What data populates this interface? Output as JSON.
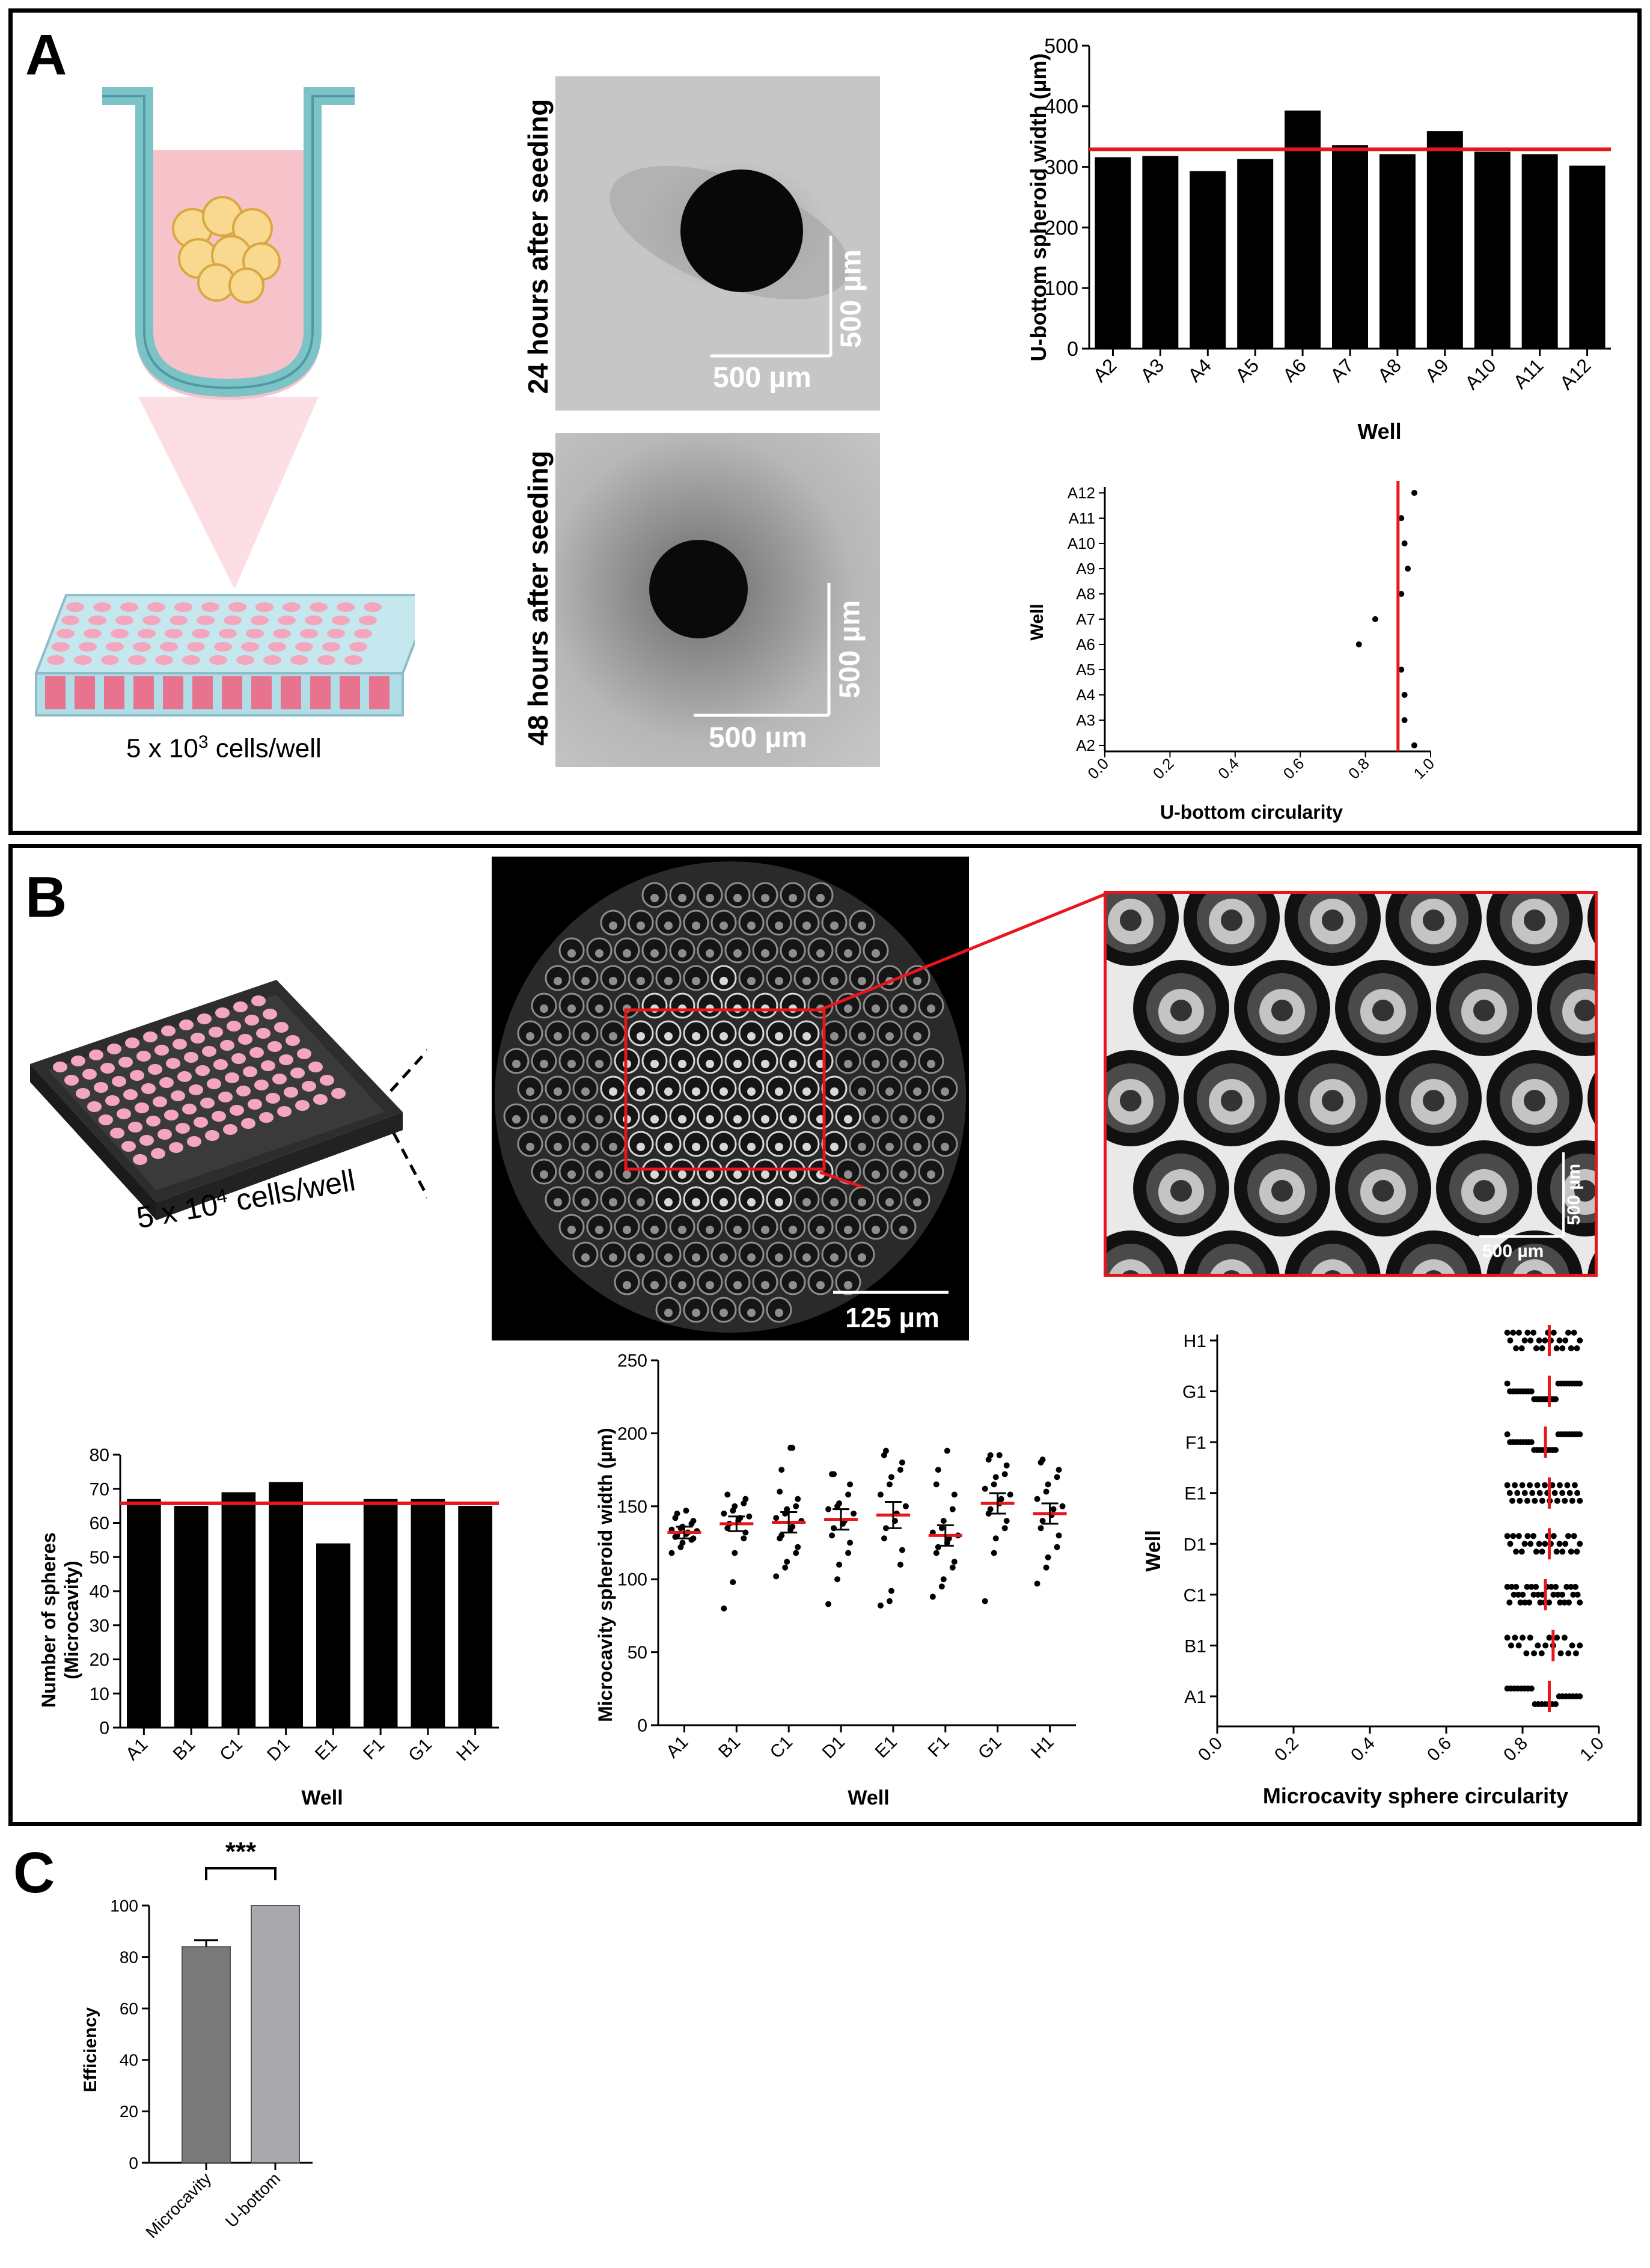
{
  "panels": {
    "a": "A",
    "b": "B",
    "c": "C"
  },
  "panel_a": {
    "seeding_caption": "5 x 10",
    "seeding_exp": "3",
    "seeding_suffix": " cells/well",
    "micrograph_24h_label": "24 hours after seeding",
    "micrograph_48h_label": "48 hours after seeding",
    "scale_x": "500 µm",
    "scale_y": "500 µm"
  },
  "panel_b": {
    "seeding_caption": "5 x 10",
    "seeding_exp": "4",
    "seeding_suffix": " cells/well",
    "overview_scale": "125 µm",
    "zoom_scale_x": "500 µm",
    "zoom_scale_y": "500 µm"
  },
  "colors": {
    "bar": "#000000",
    "reference_line": "#e8161b",
    "plate_well": "#f4a6bd",
    "medium": "#f7c6cc",
    "grey_dark": "#7a7a7a",
    "grey_light": "#a9a9ad"
  },
  "chart_data": [
    {
      "id": "ubottom_width",
      "type": "bar",
      "ylabel": "U-bottom spheroid width (µm)",
      "xlabel": "Well",
      "categories": [
        "A2",
        "A3",
        "A4",
        "A5",
        "A6",
        "A7",
        "A8",
        "A9",
        "A10",
        "A11",
        "A12"
      ],
      "values": [
        316,
        318,
        293,
        313,
        393,
        336,
        321,
        359,
        325,
        321,
        302
      ],
      "reference_line": 329,
      "ylim": [
        0,
        500
      ],
      "yticks": [
        0,
        100,
        200,
        300,
        400,
        500
      ]
    },
    {
      "id": "ubottom_circularity",
      "type": "scatter",
      "xlabel": "U-bottom circularity",
      "ylabel": "Well",
      "categories": [
        "A2",
        "A3",
        "A4",
        "A5",
        "A6",
        "A7",
        "A8",
        "A9",
        "A10",
        "A11",
        "A12"
      ],
      "values": [
        0.95,
        0.92,
        0.92,
        0.91,
        0.78,
        0.83,
        0.91,
        0.93,
        0.92,
        0.91,
        0.95
      ],
      "reference_line": 0.9,
      "xlim": [
        0,
        1
      ],
      "xticks": [
        "0.0",
        "0.2",
        "0.4",
        "0.6",
        "0.8",
        "1.0"
      ]
    },
    {
      "id": "microcavity_count",
      "type": "bar",
      "ylabel": "Number of spheres (Microcavity)",
      "xlabel": "Well",
      "categories": [
        "A1",
        "B1",
        "C1",
        "D1",
        "E1",
        "F1",
        "G1",
        "H1"
      ],
      "values": [
        67,
        65,
        69,
        72,
        54,
        67,
        67,
        65
      ],
      "reference_line": 65.75,
      "ylim": [
        0,
        80
      ],
      "yticks": [
        0,
        10,
        20,
        30,
        40,
        50,
        60,
        70,
        80
      ]
    },
    {
      "id": "microcavity_width",
      "type": "scatter",
      "ylabel": "Microcavity spheroid width (µm)",
      "xlabel": "Well",
      "categories": [
        "A1",
        "B1",
        "C1",
        "D1",
        "E1",
        "F1",
        "G1",
        "H1"
      ],
      "means": [
        132,
        138,
        139,
        141,
        144,
        130,
        152,
        145
      ],
      "sem": [
        4,
        5,
        7,
        7,
        9,
        7,
        7,
        7
      ],
      "series": [
        {
          "name": "A1",
          "values": [
            118,
            122,
            125,
            127,
            128,
            129,
            130,
            131,
            132,
            133,
            134,
            135,
            136,
            138,
            140,
            142,
            145,
            147
          ]
        },
        {
          "name": "B1",
          "values": [
            80,
            98,
            118,
            128,
            132,
            135,
            138,
            140,
            142,
            143,
            145,
            147,
            150,
            152,
            155,
            158
          ]
        },
        {
          "name": "C1",
          "values": [
            102,
            108,
            112,
            118,
            122,
            128,
            130,
            134,
            136,
            140,
            142,
            145,
            148,
            150,
            155,
            160,
            175,
            190,
            190
          ]
        },
        {
          "name": "D1",
          "values": [
            83,
            100,
            110,
            118,
            125,
            130,
            135,
            138,
            140,
            145,
            148,
            150,
            152,
            158,
            165,
            172,
            172
          ]
        },
        {
          "name": "E1",
          "values": [
            82,
            85,
            92,
            110,
            120,
            128,
            135,
            140,
            145,
            150,
            158,
            165,
            170,
            175,
            180,
            185,
            188
          ]
        },
        {
          "name": "F1",
          "values": [
            88,
            95,
            100,
            108,
            112,
            118,
            122,
            125,
            128,
            130,
            132,
            135,
            140,
            148,
            158,
            165,
            175,
            188
          ]
        },
        {
          "name": "G1",
          "values": [
            85,
            118,
            128,
            135,
            140,
            145,
            148,
            152,
            155,
            158,
            162,
            165,
            170,
            172,
            178,
            182,
            185,
            185
          ]
        },
        {
          "name": "H1",
          "values": [
            97,
            108,
            115,
            122,
            130,
            135,
            140,
            144,
            148,
            150,
            155,
            160,
            165,
            170,
            175,
            180,
            182
          ]
        }
      ],
      "ylim": [
        0,
        250
      ],
      "yticks": [
        0,
        50,
        100,
        150,
        200,
        250
      ]
    },
    {
      "id": "microcavity_circularity",
      "type": "scatter",
      "xlabel": "Microcavity sphere circularity",
      "ylabel": "Well",
      "categories": [
        "A1",
        "B1",
        "C1",
        "D1",
        "E1",
        "F1",
        "G1",
        "H1"
      ],
      "means": [
        0.87,
        0.88,
        0.86,
        0.87,
        0.87,
        0.86,
        0.87,
        0.87
      ],
      "counts": [
        22,
        20,
        34,
        26,
        30,
        28,
        28,
        26
      ],
      "spread": [
        0.76,
        0.95
      ],
      "xlim": [
        0,
        1
      ],
      "xticks": [
        "0.0",
        "0.2",
        "0.4",
        "0.6",
        "0.8",
        "1.0"
      ]
    },
    {
      "id": "efficiency",
      "type": "bar",
      "ylabel": "Efficiency",
      "categories": [
        "Microcavity",
        "U-bottom"
      ],
      "values": [
        84,
        100
      ],
      "error": [
        2.5,
        0
      ],
      "significance": "***",
      "ylim": [
        0,
        100
      ],
      "yticks": [
        0,
        20,
        40,
        60,
        80,
        100
      ]
    }
  ]
}
